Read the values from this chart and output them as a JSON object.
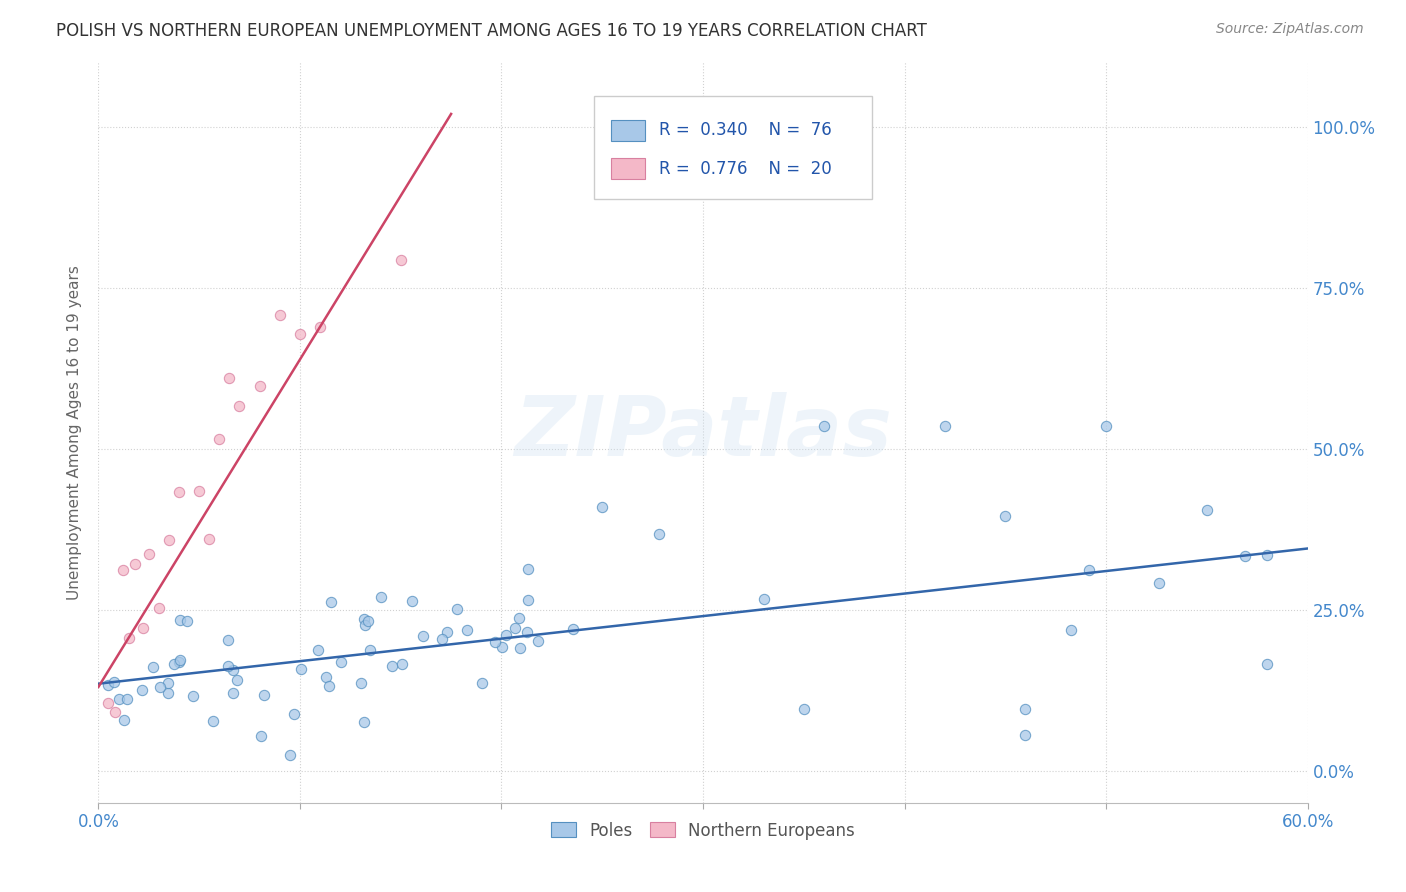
{
  "title": "POLISH VS NORTHERN EUROPEAN UNEMPLOYMENT AMONG AGES 16 TO 19 YEARS CORRELATION CHART",
  "source": "Source: ZipAtlas.com",
  "xlim": [
    0.0,
    0.6
  ],
  "ylim": [
    -0.05,
    1.1
  ],
  "xtick_vals": [
    0.0,
    0.1,
    0.2,
    0.3,
    0.4,
    0.5,
    0.6
  ],
  "xtick_labels": [
    "0.0%",
    "",
    "",
    "",
    "",
    "",
    "60.0%"
  ],
  "ytick_vals": [
    0.0,
    0.25,
    0.5,
    0.75,
    1.0
  ],
  "ytick_labels": [
    "0.0%",
    "25.0%",
    "50.0%",
    "75.0%",
    "100.0%"
  ],
  "poles_color": "#a8c8e8",
  "poles_edge": "#5590c0",
  "north_color": "#f4b8c8",
  "north_edge": "#d880a0",
  "poles_trend_color": "#3366aa",
  "north_trend_color": "#cc4466",
  "poles_R": "0.340",
  "poles_N": "76",
  "north_R": "0.776",
  "north_N": "20",
  "poles_trend_x": [
    0.0,
    0.6
  ],
  "poles_trend_y": [
    0.135,
    0.345
  ],
  "north_trend_x": [
    0.0,
    0.175
  ],
  "north_trend_y": [
    0.13,
    1.02
  ],
  "watermark": "ZIPatlas",
  "background_color": "#ffffff",
  "grid_color": "#cccccc",
  "ylabel": "Unemployment Among Ages 16 to 19 years"
}
